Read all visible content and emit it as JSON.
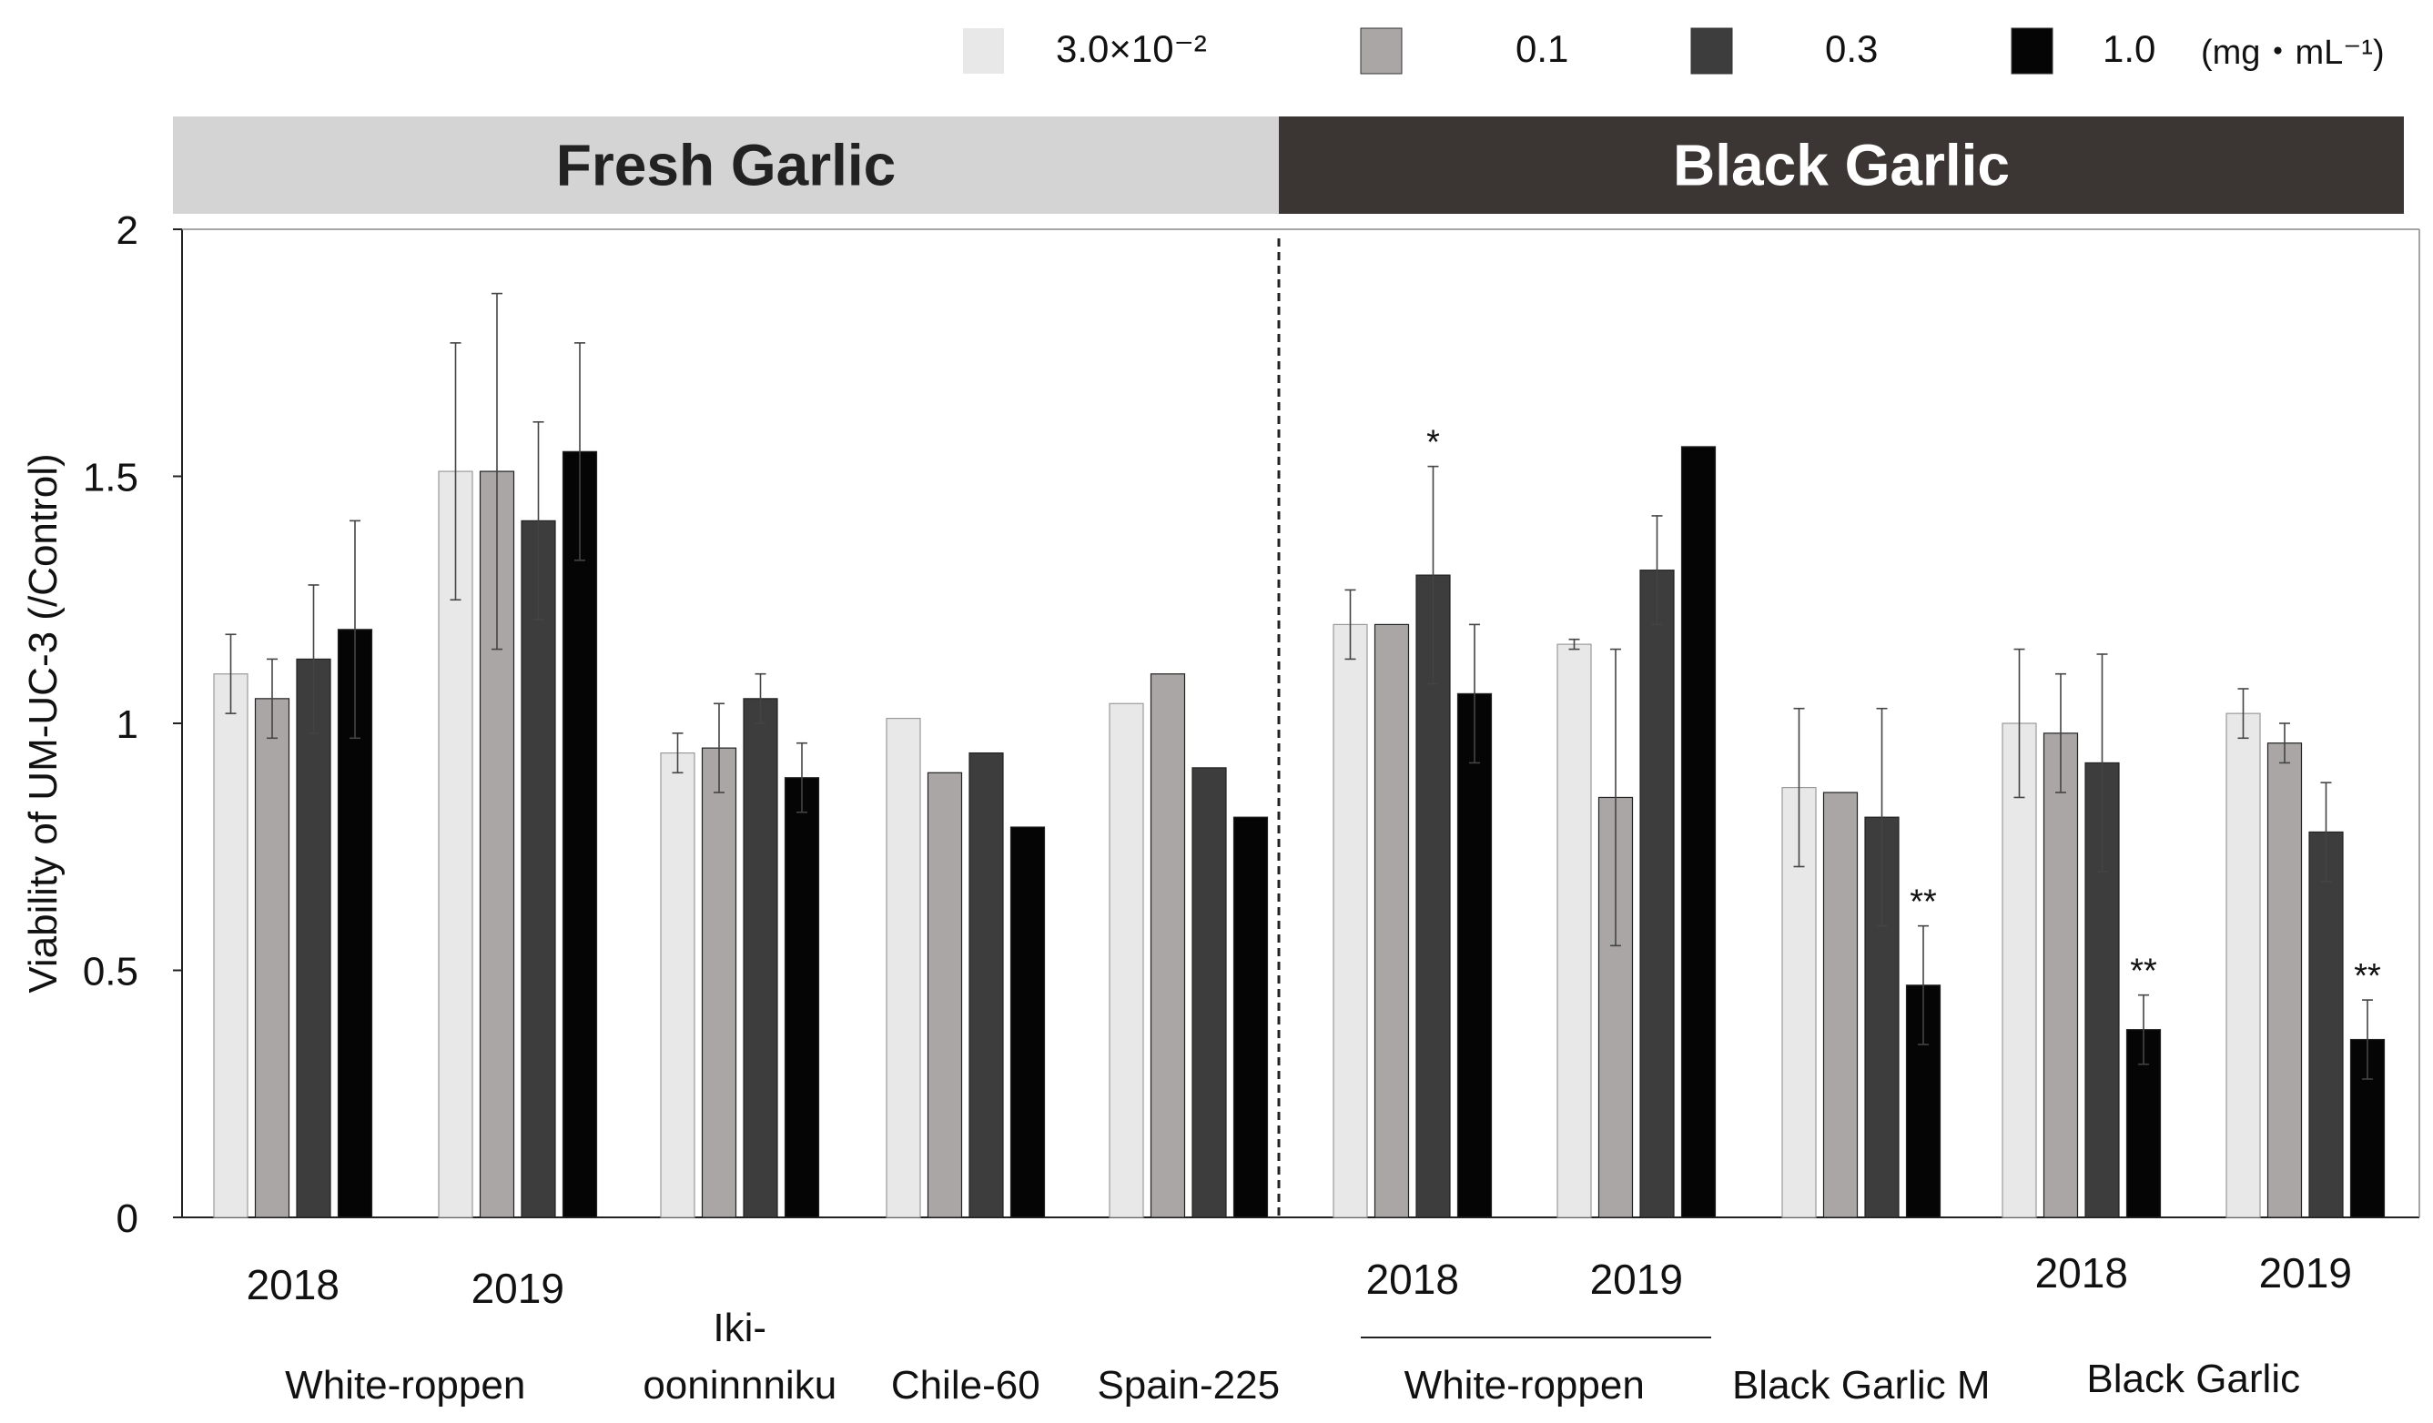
{
  "chart_data": {
    "type": "bar",
    "title": "",
    "ylabel": "Viability of UM-UC-3 (/Control)",
    "xlabel": "",
    "ylim": [
      0,
      2
    ],
    "yticks": [
      "0",
      "0.5",
      "1",
      "1.5",
      "2"
    ],
    "grid": false,
    "legend_position": "top-right",
    "legend_unit": "(mg・mL⁻¹)",
    "banners": [
      {
        "label": "Fresh Garlic",
        "color": "#d4d4d4",
        "text_color": "#222222"
      },
      {
        "label": "Black Garlic",
        "color": "#3b3533",
        "text_color": "#ffffff"
      }
    ],
    "series": [
      {
        "name": "3.0×10⁻²",
        "color": "#e8e8e8",
        "values": [
          1.1,
          1.51,
          0.94,
          1.01,
          1.04,
          1.2,
          1.16,
          0.87,
          1.0,
          1.02
        ],
        "errors": [
          0.08,
          0.26,
          0.04,
          null,
          null,
          0.07,
          0.01,
          0.16,
          0.15,
          0.05
        ],
        "stars": [
          "",
          "",
          "",
          "",
          "",
          "",
          "",
          "",
          "",
          ""
        ]
      },
      {
        "name": "0.1",
        "color": "#aaa6a6",
        "values": [
          1.05,
          1.51,
          0.95,
          0.9,
          1.1,
          1.2,
          0.85,
          0.86,
          0.98,
          0.96
        ],
        "errors": [
          0.08,
          0.36,
          0.09,
          null,
          null,
          null,
          0.3,
          null,
          0.12,
          0.04
        ],
        "stars": [
          "",
          "",
          "",
          "",
          "",
          "",
          "",
          "",
          "",
          ""
        ]
      },
      {
        "name": "0.3",
        "color": "#3d3d3d",
        "values": [
          1.13,
          1.41,
          1.05,
          0.94,
          0.91,
          1.3,
          1.31,
          0.81,
          0.92,
          0.78
        ],
        "errors": [
          0.15,
          0.2,
          0.05,
          null,
          null,
          0.22,
          0.11,
          0.22,
          0.22,
          0.1
        ],
        "stars": [
          "",
          "",
          "",
          "",
          "",
          "*",
          "",
          "",
          "",
          ""
        ]
      },
      {
        "name": "1.0",
        "color": "#050505",
        "values": [
          1.19,
          1.55,
          0.89,
          0.79,
          0.81,
          1.06,
          1.56,
          0.47,
          0.38,
          0.36
        ],
        "errors": [
          0.22,
          0.22,
          0.07,
          null,
          null,
          0.14,
          null,
          0.12,
          0.07,
          0.08
        ],
        "stars": [
          "",
          "",
          "",
          "",
          "",
          "",
          "",
          "**",
          "**",
          "**"
        ]
      }
    ],
    "groups": [
      {
        "year": "2018",
        "name": ""
      },
      {
        "year": "2019",
        "name": ""
      },
      {
        "year": "",
        "name": "Iki-",
        "name2": "ooninnniku"
      },
      {
        "year": "",
        "name": "Chile-60"
      },
      {
        "year": "",
        "name": "Spain-225"
      },
      {
        "year": "2018",
        "name": ""
      },
      {
        "year": "2019",
        "name": ""
      },
      {
        "year": "",
        "name": "Black Garlic M"
      },
      {
        "year": "2018",
        "name": ""
      },
      {
        "year": "2019",
        "name": ""
      }
    ],
    "bracket_labels": [
      {
        "label": "White-roppen",
        "groups": [
          0,
          1
        ],
        "underline": false
      },
      {
        "label": "White-roppen",
        "groups": [
          5,
          6
        ],
        "underline": true
      },
      {
        "label": "Black Garlic",
        "groups": [
          8,
          9
        ],
        "underline": false
      }
    ]
  }
}
